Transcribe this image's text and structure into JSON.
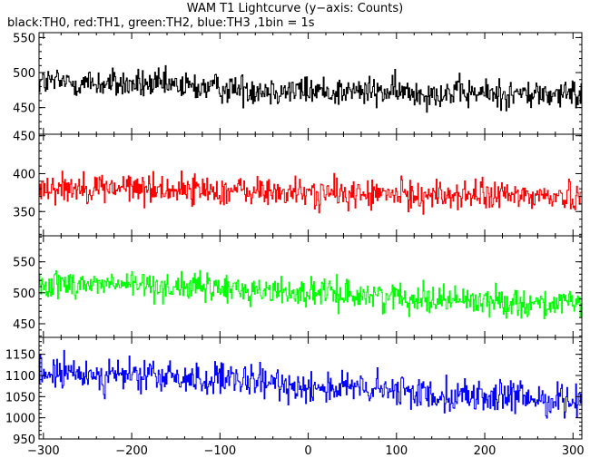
{
  "title": "WAM T1 Lightcurve (y−axis: Counts)",
  "subtitle": "black:TH0, red:TH1, green:TH2, blue:TH3 ,1bin = 1s",
  "chart_data": {
    "type": "line",
    "x_range": [
      -305,
      310
    ],
    "x_ticks": [
      -300,
      -200,
      -100,
      0,
      100,
      200,
      300
    ],
    "x_tick_labels": [
      "−300",
      "−200",
      "−100",
      "0",
      "100",
      "200",
      "300"
    ],
    "bin_size_s": 1,
    "panels": [
      {
        "series_name": "TH0",
        "color": "#000000",
        "ylim": [
          412,
          557
        ],
        "y_ticks": [
          450,
          500,
          550
        ],
        "trend": [
          [
            -305,
            487
          ],
          [
            -200,
            483
          ],
          [
            -100,
            478
          ],
          [
            0,
            474
          ],
          [
            100,
            472
          ],
          [
            200,
            470
          ],
          [
            310,
            468
          ]
        ],
        "noise_amplitude": 30
      },
      {
        "series_name": "TH1",
        "color": "#ff0000",
        "ylim": [
          318,
          452
        ],
        "y_ticks": [
          350,
          400,
          450
        ],
        "trend": [
          [
            -305,
            383
          ],
          [
            -200,
            381
          ],
          [
            -100,
            378
          ],
          [
            0,
            374
          ],
          [
            100,
            372
          ],
          [
            200,
            371
          ],
          [
            310,
            370
          ]
        ],
        "noise_amplitude": 28
      },
      {
        "series_name": "TH2",
        "color": "#00ff00",
        "ylim": [
          428,
          592
        ],
        "y_ticks": [
          450,
          500,
          550
        ],
        "trend": [
          [
            -305,
            515
          ],
          [
            -200,
            513
          ],
          [
            -100,
            507
          ],
          [
            0,
            500
          ],
          [
            100,
            494
          ],
          [
            200,
            487
          ],
          [
            310,
            480
          ]
        ],
        "noise_amplitude": 32
      },
      {
        "series_name": "TH3",
        "color": "#0000ff",
        "ylim": [
          950,
          1190
        ],
        "y_ticks": [
          950,
          1000,
          1050,
          1100,
          1150
        ],
        "trend": [
          [
            -305,
            1105
          ],
          [
            -200,
            1100
          ],
          [
            -100,
            1088
          ],
          [
            0,
            1075
          ],
          [
            100,
            1062
          ],
          [
            200,
            1050
          ],
          [
            310,
            1040
          ]
        ],
        "noise_amplitude": 55
      }
    ]
  }
}
